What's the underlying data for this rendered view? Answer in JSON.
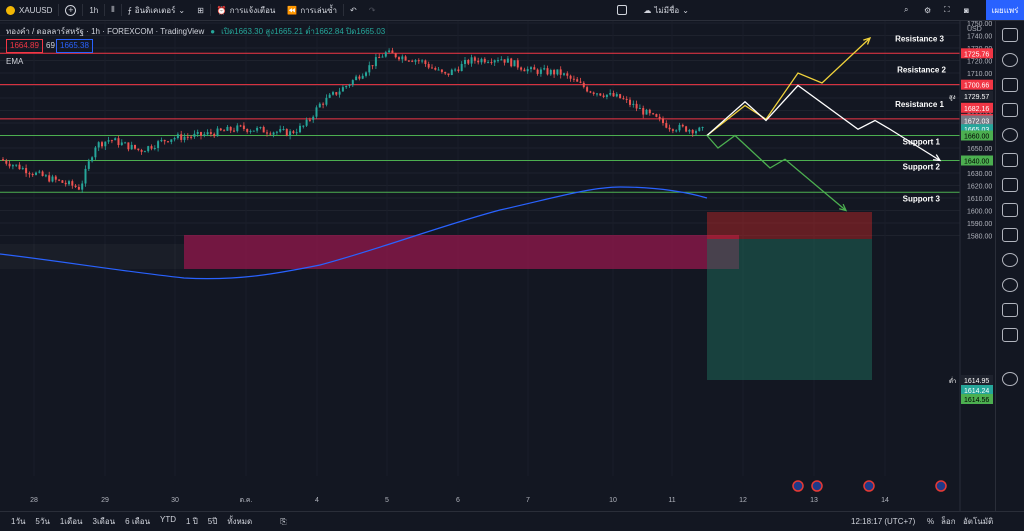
{
  "toolbar": {
    "symbol": "XAUUSD",
    "interval": "1h",
    "indicators": "อินดิเคเตอร์",
    "alert": "การแจ้งเตือน",
    "replay": "การเล่นซ้ำ",
    "unnamed": "ไม่มีชื่อ",
    "publish": "เผยแพร่"
  },
  "legend": {
    "title": "ทองคำ / ดอลลาร์สหรัฐ · 1h · FOREXCOM · TradingView",
    "ohlc": "เปิด1663.30 สูง1665.21 ต่ำ1662.84 ปิด1665.03",
    "bid": "1664.89",
    "spread": "69",
    "ask": "1665.38",
    "ema": "EMA"
  },
  "chart_data": {
    "type": "line",
    "price_axis": {
      "currency": "USD",
      "ticks": [
        1750,
        1740,
        1730,
        1720,
        1710,
        1700,
        1690,
        1680,
        1670,
        1660,
        1650,
        1640,
        1630,
        1620,
        1610,
        1600,
        1590,
        1580
      ]
    },
    "time_axis": [
      "28",
      "29",
      "30",
      "ต.ค.",
      "4",
      "5",
      "6",
      "7",
      "10",
      "11",
      "12",
      "13",
      "14"
    ],
    "levels": [
      {
        "name": "Resistance 3",
        "price": 1725.76
      },
      {
        "name": "Resistance 2",
        "price": 1700.66
      },
      {
        "name": "Resistance 1",
        "price": 1673.35
      },
      {
        "name": "Support 1",
        "price": 1660.0
      },
      {
        "name": "Support 2",
        "price": 1640.0
      },
      {
        "name": "Support 3",
        "price": 1614.56
      }
    ],
    "price_labels": {
      "high_tag": "สูง",
      "high": "1729.57",
      "r3": "1725.76",
      "r2": "1700.66",
      "box_top": "1682.16",
      "r1": "1673.35",
      "current": "1672.03",
      "last": "1665.03",
      "s1": "1660.00",
      "s2": "1640.00",
      "low_tag": "ต่ำ",
      "low": "1614.95",
      "s3a": "1614.24",
      "s3b": "1614.56"
    },
    "scenario_paths": {
      "yellow": [
        1660,
        1684,
        1673,
        1710,
        1702,
        1738
      ],
      "white": [
        1660,
        1687,
        1672,
        1700,
        1665,
        1672,
        1665,
        1640
      ],
      "green": [
        1660,
        1650,
        1660,
        1634,
        1641,
        1600
      ]
    }
  },
  "bottombar": {
    "ranges": [
      "1วัน",
      "5วัน",
      "1เดือน",
      "3เดือน",
      "6 เดือน",
      "YTD",
      "1 ปี",
      "5ปี",
      "ทั้งหมด"
    ],
    "time": "12:18:17 (UTC+7)",
    "percent": "%",
    "log": "ล็อก",
    "auto": "อัตโนมัติ"
  }
}
